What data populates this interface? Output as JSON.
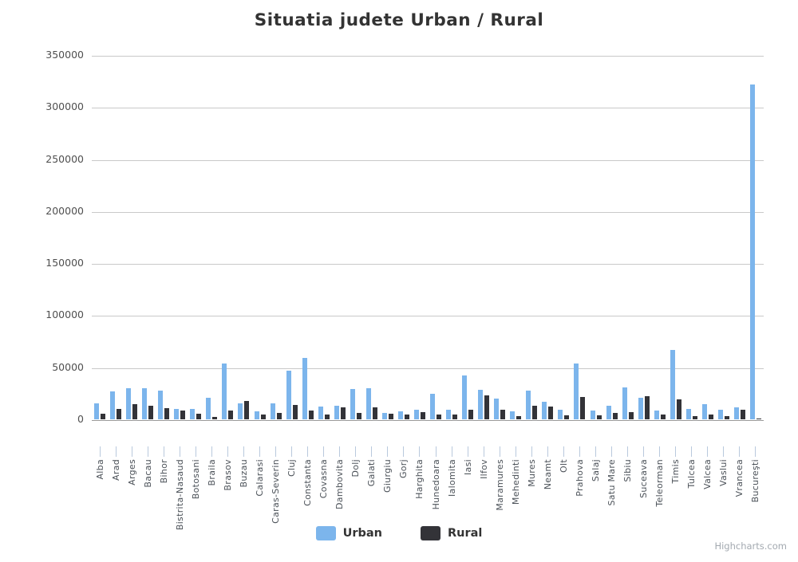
{
  "title": "Situatia judete Urban / Rural",
  "credits_label": "Highcharts.com",
  "colors": {
    "urban": "#7cb5ec",
    "rural": "#333338",
    "gridline": "#c9c9c9",
    "axis_line": "#9a9a9a",
    "tick": "#b9c9dd",
    "title_text": "#333333",
    "axis_label_text": "#4b5158"
  },
  "legend": {
    "items": [
      {
        "label": "Urban",
        "color": "#7cb5ec"
      },
      {
        "label": "Rural",
        "color": "#333338"
      }
    ]
  },
  "chart_data": {
    "type": "bar",
    "title": "Situatia judete Urban / Rural",
    "xlabel": "",
    "ylabel": "",
    "ylim": [
      0,
      350000
    ],
    "yticks": [
      0,
      50000,
      100000,
      150000,
      200000,
      250000,
      300000,
      350000
    ],
    "grid": true,
    "legend_position": "bottom",
    "categories": [
      "Alba",
      "Arad",
      "Arges",
      "Bacau",
      "Bihor",
      "Bistrita-Nasaud",
      "Botosani",
      "Braila",
      "Brasov",
      "Buzau",
      "Calarasi",
      "Caras-Severin",
      "Cluj",
      "Constanta",
      "Covasna",
      "Dambovita",
      "Dolj",
      "Galati",
      "Giurgiu",
      "Gorj",
      "Harghita",
      "Hunedoara",
      "Ialomita",
      "Iasi",
      "Ilfov",
      "Maramures",
      "Mehedinti",
      "Mures",
      "Neamt",
      "Olt",
      "Prahova",
      "Salaj",
      "Satu Mare",
      "Sibiu",
      "Suceava",
      "Teleorman",
      "Timis",
      "Tulcea",
      "Valcea",
      "Vaslui",
      "Vrancea",
      "Bucureşti"
    ],
    "series": [
      {
        "name": "Urban",
        "color": "#7cb5ec",
        "values": [
          15000,
          27000,
          29900,
          30000,
          27500,
          10000,
          10200,
          20300,
          53600,
          15000,
          7800,
          15500,
          46700,
          59000,
          12000,
          12800,
          29000,
          30000,
          6400,
          7700,
          9500,
          24400,
          9000,
          41800,
          28700,
          20000,
          7700,
          27700,
          16700,
          9500,
          53800,
          8200,
          13300,
          31000,
          21000,
          8500,
          66900,
          9700,
          14900,
          9200,
          11800,
          322000
        ]
      },
      {
        "name": "Rural",
        "color": "#333338",
        "values": [
          5700,
          9800,
          14500,
          13100,
          10500,
          8700,
          5600,
          2300,
          8500,
          17600,
          4400,
          6500,
          14100,
          8200,
          4600,
          11500,
          6400,
          11500,
          5600,
          4600,
          6900,
          4400,
          4400,
          9500,
          22800,
          9000,
          3100,
          13300,
          12000,
          3800,
          21300,
          3800,
          5900,
          6700,
          22500,
          4600,
          19500,
          3300,
          4600,
          3300,
          9200,
          600
        ]
      }
    ]
  }
}
